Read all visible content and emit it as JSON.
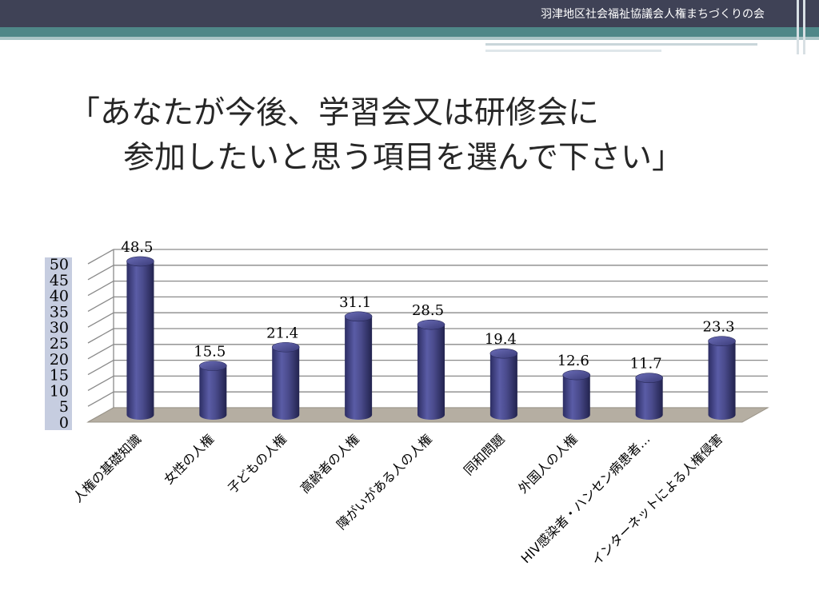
{
  "header": {
    "title": "羽津地区社会福祉協議会人権まちづくりの会"
  },
  "slide": {
    "title_line1": "「あなたが今後、学習会又は研修会に",
    "title_line2": "参加したいと思う項目を選んで下さい」"
  },
  "chart_data": {
    "type": "bar",
    "categories": [
      "人権の基礎知識",
      "女性の人権",
      "子どもの人権",
      "高齢者の人権",
      "障がいがある人の人権",
      "同和問題",
      "外国人の人権",
      "HIV感染者・ハンセン病患者…",
      "インターネットによる人権侵害"
    ],
    "values": [
      48.5,
      15.5,
      21.4,
      31.1,
      28.5,
      19.4,
      12.6,
      11.7,
      23.3
    ],
    "data_labels": [
      "48.5",
      "15.5",
      "21.4",
      "31.1",
      "28.5",
      "19.4",
      "12.6",
      "11.7",
      "23.3"
    ],
    "y_ticks": [
      0,
      5,
      10,
      15,
      20,
      25,
      30,
      35,
      40,
      45,
      50
    ],
    "ylim": [
      0,
      50
    ],
    "grid": true,
    "bar_color": "#4a4b8c",
    "floor_color": "#b5aea2"
  }
}
